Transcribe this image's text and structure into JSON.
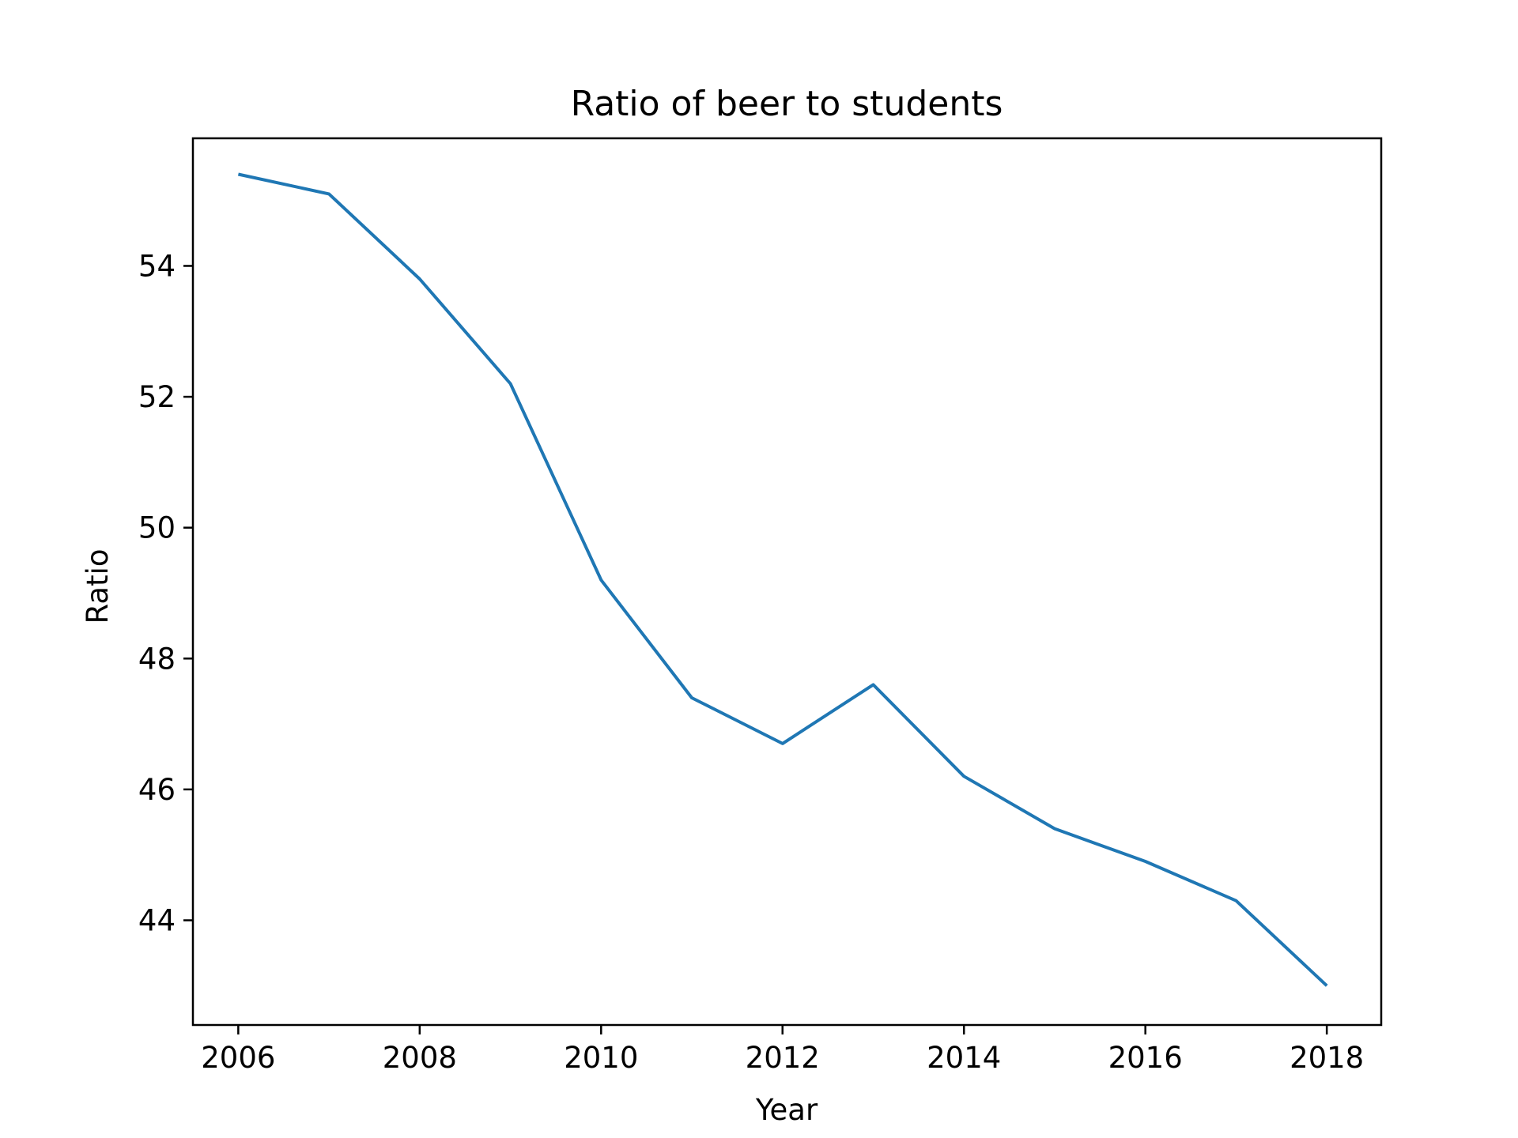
{
  "chart_data": {
    "type": "line",
    "title": "Ratio of beer to students",
    "xlabel": "Year",
    "ylabel": "Ratio",
    "xlim": [
      2005.5,
      2018.6
    ],
    "ylim": [
      42.4,
      55.95
    ],
    "x_ticks": [
      2006,
      2008,
      2010,
      2012,
      2014,
      2016,
      2018
    ],
    "y_ticks": [
      44,
      46,
      48,
      50,
      52,
      54
    ],
    "grid": false,
    "legend": false,
    "series": [
      {
        "name": "Ratio",
        "color": "#1f77b4",
        "x": [
          2006,
          2007,
          2008,
          2009,
          2010,
          2011,
          2012,
          2013,
          2014,
          2015,
          2016,
          2017,
          2018
        ],
        "values": [
          55.4,
          55.1,
          53.8,
          52.2,
          49.2,
          47.4,
          46.7,
          47.6,
          46.2,
          45.4,
          44.9,
          44.3,
          43.0
        ]
      }
    ]
  }
}
